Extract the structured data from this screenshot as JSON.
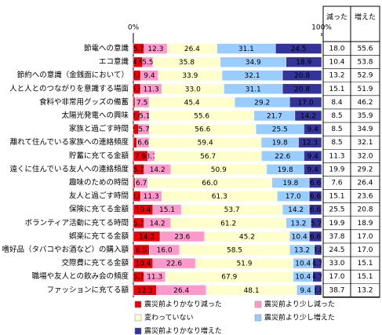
{
  "chart_data": {
    "type": "stacked-bar-100",
    "categories": [
      "節電への意識",
      "エコ意識",
      "節約への意識（金銭面において）",
      "人と人とのつながりを意識する場面",
      "食料や非常用グッズの備蓄",
      "太陽光発電への興味",
      "家族と過ごす時間",
      "離れて住んでいる家族への連絡頻度",
      "貯蓄に充てる金額",
      "遠くに住んでいる友人への連絡頻度",
      "趣味のための時間",
      "友人と過ごす時間",
      "保険に充てる金額",
      "ボランティア活動に充てる時間",
      "娯楽に充てる金額",
      "嗜好品（タバコやお酒など）の購入額",
      "交際費に充てる金額",
      "職場や友人との飲み会の頻度",
      "ファッションに充てる額"
    ],
    "xlim": [
      0,
      100
    ],
    "xticks": [
      {
        "value": 0,
        "label": "0%"
      },
      {
        "value": 100,
        "label": "100%"
      }
    ],
    "series": [
      {
        "name": "震災前よりかなり減った",
        "color": "#e8000b",
        "values": [
          5.7,
          4.9,
          3.8,
          3.8,
          0.9,
          3.4,
          2.8,
          1.9,
          7.6,
          5.7,
          0.9,
          3.8,
          10.4,
          5.7,
          14.2,
          8.5,
          10.4,
          5.7,
          12.3
        ],
        "value_labels": [
          "5.7",
          "4.9",
          "3.8",
          "3.8",
          "0.9",
          "3.4",
          "2.8",
          "1.9",
          "7.6",
          "5.7",
          "0.9",
          "3.8",
          "10.4",
          "5.7",
          "14.2",
          "8.5",
          "10.4",
          "5.7",
          "12.3"
        ]
      },
      {
        "name": "震災前より少し減った",
        "color": "#ff99cc",
        "values": [
          12.3,
          5.5,
          9.4,
          11.3,
          7.5,
          5.1,
          5.7,
          6.6,
          3.7,
          14.2,
          6.7,
          11.3,
          15.1,
          14.2,
          23.6,
          16.0,
          22.6,
          11.3,
          26.4
        ],
        "value_labels": [
          "12.3",
          "5.5",
          "9.4",
          "11.3",
          "7.5",
          "5.1",
          "5.7",
          "6.6",
          "3.7",
          "14.2",
          "6.7",
          "11.3",
          "15.1",
          "14.2",
          "23.6",
          "16.0",
          "22.6",
          "11.3",
          "26.4"
        ]
      },
      {
        "name": "変わっていない",
        "color": "#ffffcc",
        "values": [
          26.4,
          35.8,
          33.9,
          33.0,
          45.4,
          55.6,
          56.6,
          59.4,
          56.7,
          50.9,
          66.0,
          61.3,
          53.7,
          61.2,
          45.2,
          58.5,
          51.9,
          67.9,
          48.1
        ],
        "value_labels": [
          "26.4",
          "35.8",
          "33.9",
          "33.0",
          "45.4",
          "55.6",
          "56.6",
          "59.4",
          "56.7",
          "50.9",
          "66.0",
          "61.3",
          "53.7",
          "61.2",
          "45.2",
          "58.5",
          "51.9",
          "67.9",
          "48.1"
        ]
      },
      {
        "name": "震災前より少し増えた",
        "color": "#99ccff",
        "values": [
          31.1,
          34.9,
          32.1,
          31.1,
          29.2,
          21.7,
          25.5,
          19.8,
          22.6,
          19.8,
          19.8,
          17.0,
          14.2,
          13.2,
          10.4,
          13.2,
          10.4,
          10.4,
          9.4
        ],
        "value_labels": [
          "31.1",
          "34.9",
          "32.1",
          "31.1",
          "29.2",
          "21.7",
          "25.5",
          "19.8",
          "22.6",
          "19.8",
          "19.8",
          "17.0",
          "14.2",
          "13.2",
          "10.4",
          "13.2",
          "10.4",
          "10.4",
          "9.4"
        ]
      },
      {
        "name": "震災前よりかなり増えた",
        "color": "#333399",
        "values": [
          24.5,
          18.9,
          20.8,
          20.8,
          17.0,
          14.2,
          9.4,
          12.3,
          9.4,
          9.4,
          6.6,
          6.6,
          6.6,
          5.7,
          6.6,
          3.8,
          4.7,
          4.7,
          3.8
        ],
        "value_labels": [
          "24.5",
          "18.9",
          "20.8",
          "20.8",
          "17.0",
          "14.2",
          "9.4",
          "12.3",
          "9.4",
          "9.4",
          "6.6",
          "6.6",
          "6.6",
          "5.7",
          "6.6",
          "3.8",
          "4.7",
          "4.7",
          "3.8"
        ]
      }
    ],
    "table": {
      "headers": [
        "減った",
        "増えた"
      ],
      "rows": [
        [
          "18.0",
          "55.6"
        ],
        [
          "10.4",
          "53.8"
        ],
        [
          "13.2",
          "52.9"
        ],
        [
          "15.1",
          "51.9"
        ],
        [
          "8.4",
          "46.2"
        ],
        [
          "8.5",
          "35.9"
        ],
        [
          "8.5",
          "34.9"
        ],
        [
          "8.5",
          "32.1"
        ],
        [
          "11.3",
          "32.0"
        ],
        [
          "19.9",
          "29.2"
        ],
        [
          "7.6",
          "26.4"
        ],
        [
          "15.1",
          "23.6"
        ],
        [
          "25.5",
          "20.8"
        ],
        [
          "19.9",
          "18.9"
        ],
        [
          "37.8",
          "17.0"
        ],
        [
          "24.5",
          "17.0"
        ],
        [
          "33.0",
          "15.1"
        ],
        [
          "17.0",
          "15.1"
        ],
        [
          "38.7",
          "13.2"
        ]
      ]
    }
  }
}
